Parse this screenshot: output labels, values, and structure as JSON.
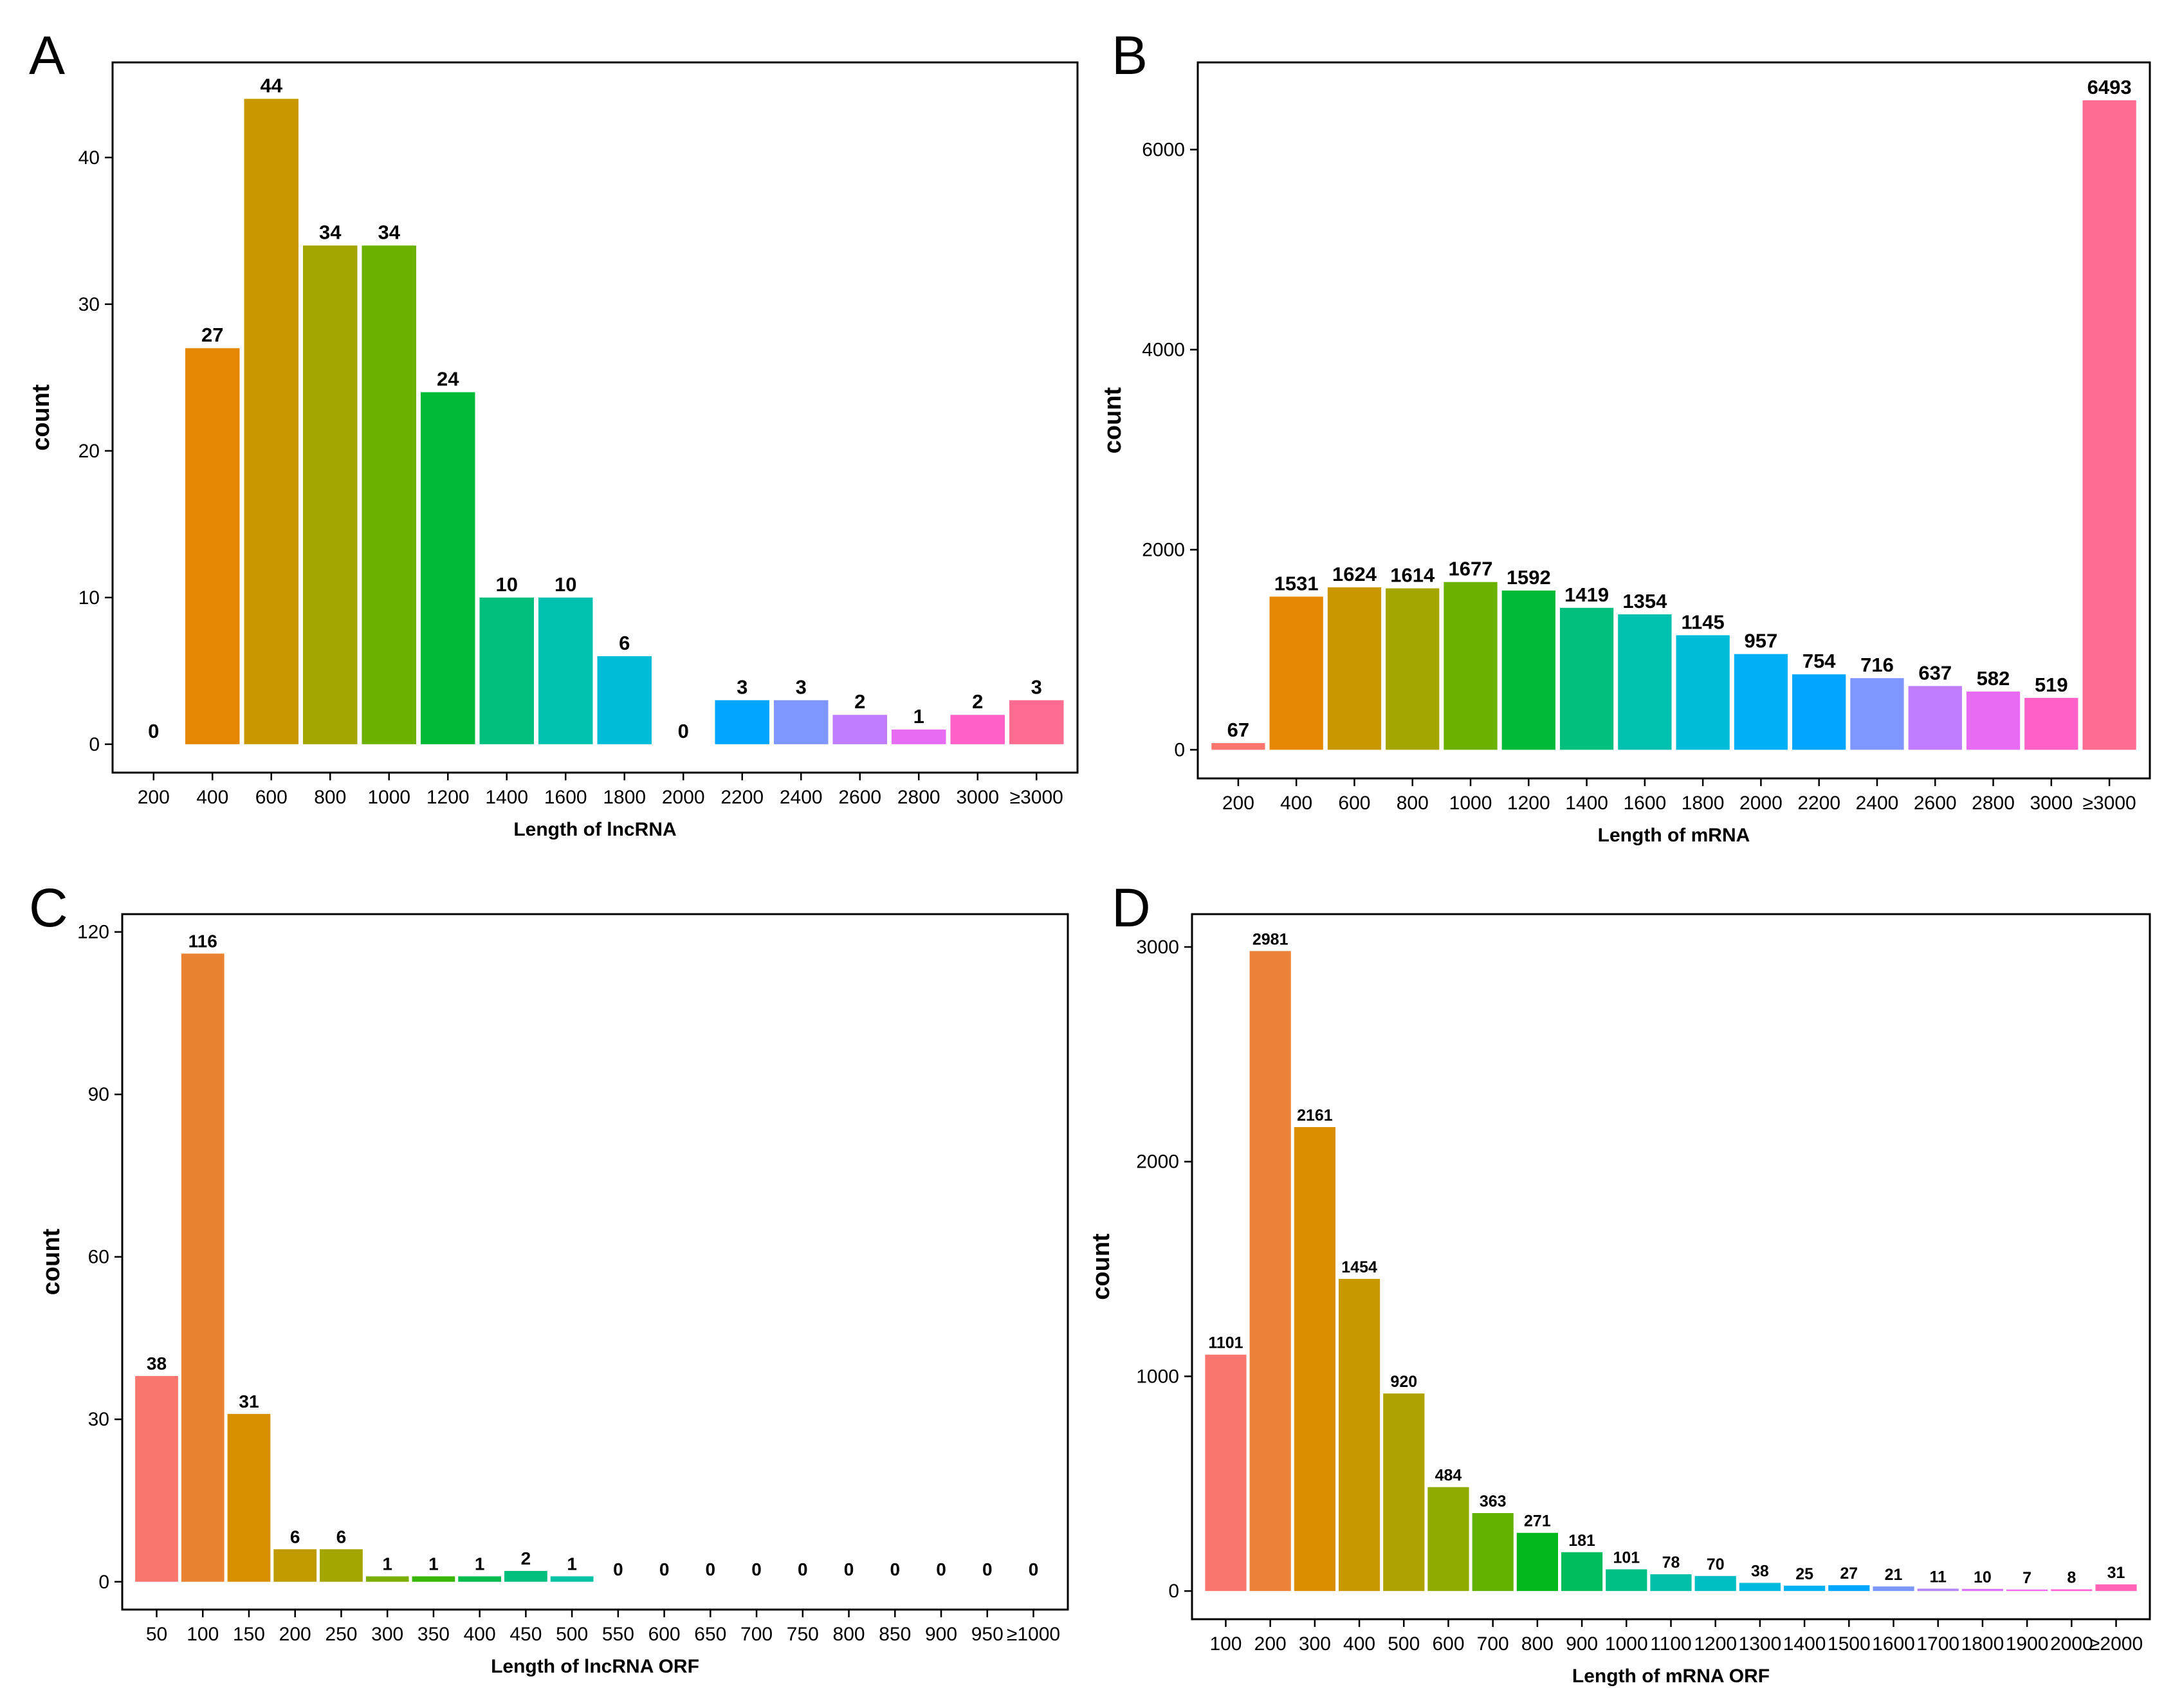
{
  "figure": {
    "panel_letters": [
      "A",
      "B",
      "C",
      "D"
    ]
  },
  "chart_data": [
    {
      "panel": "A",
      "type": "bar",
      "xlabel": "Length of lncRNA",
      "ylabel": "count",
      "ylim": [
        0,
        46
      ],
      "yticks": [
        0,
        10,
        20,
        30,
        40
      ],
      "categories": [
        "200",
        "400",
        "600",
        "800",
        "1000",
        "1200",
        "1400",
        "1600",
        "1800",
        "2000",
        "2200",
        "2400",
        "2600",
        "2800",
        "3000",
        "≥3000"
      ],
      "values": [
        0,
        27,
        44,
        34,
        34,
        24,
        10,
        10,
        6,
        0,
        3,
        3,
        2,
        1,
        2,
        3
      ],
      "colors": [
        "#F8766D",
        "#E58700",
        "#C99800",
        "#A3A500",
        "#6BB100",
        "#00BA38",
        "#00BF7D",
        "#00C0AF",
        "#00BCD8",
        "#00B0F6",
        "#00A5FF",
        "#7F96FF",
        "#BF7CFF",
        "#E76BF3",
        "#FF61C9",
        "#FF6C91"
      ],
      "grid": false
    },
    {
      "panel": "B",
      "type": "bar",
      "xlabel": "Length of mRNA",
      "ylabel": "count",
      "ylim": [
        0,
        6800
      ],
      "yticks": [
        0,
        2000,
        4000,
        6000
      ],
      "categories": [
        "200",
        "400",
        "600",
        "800",
        "1000",
        "1200",
        "1400",
        "1600",
        "1800",
        "2000",
        "2200",
        "2400",
        "2600",
        "2800",
        "3000",
        "≥3000"
      ],
      "values": [
        67,
        1531,
        1624,
        1614,
        1677,
        1592,
        1419,
        1354,
        1145,
        957,
        754,
        716,
        637,
        582,
        519,
        6493
      ],
      "colors": [
        "#F8766D",
        "#E58700",
        "#C99800",
        "#A3A500",
        "#6BB100",
        "#00BA38",
        "#00BF7D",
        "#00C0AF",
        "#00BCD8",
        "#00B0F6",
        "#00A5FF",
        "#7F96FF",
        "#BF7CFF",
        "#E76BF3",
        "#FF61C9",
        "#FF6C91"
      ],
      "grid": false
    },
    {
      "panel": "C",
      "type": "bar",
      "xlabel": "Length of lncRNA ORF",
      "ylabel": "count",
      "ylim": [
        0,
        122
      ],
      "yticks": [
        0,
        30,
        60,
        90,
        120
      ],
      "categories": [
        "50",
        "100",
        "150",
        "200",
        "250",
        "300",
        "350",
        "400",
        "450",
        "500",
        "550",
        "600",
        "650",
        "700",
        "750",
        "800",
        "850",
        "900",
        "950",
        "≥1000"
      ],
      "values": [
        38,
        116,
        31,
        6,
        6,
        1,
        1,
        1,
        2,
        1,
        0,
        0,
        0,
        0,
        0,
        0,
        0,
        0,
        0,
        0
      ],
      "colors": [
        "#F8766D",
        "#EA8331",
        "#D89000",
        "#C09B00",
        "#A3A500",
        "#7CAE00",
        "#39B600",
        "#00BB4E",
        "#00BF7D",
        "#00C1A3",
        "#00BFC4",
        "#00BAE0",
        "#00B0F6",
        "#35A2FF",
        "#9590FF",
        "#C77CFF",
        "#E76BF3",
        "#FA62DB",
        "#FF62BC",
        "#FF6C91"
      ],
      "grid": false
    },
    {
      "panel": "D",
      "type": "bar",
      "xlabel": "Length of mRNA ORF",
      "ylabel": "count",
      "ylim": [
        0,
        3120
      ],
      "yticks": [
        0,
        1000,
        2000,
        3000
      ],
      "categories": [
        "100",
        "200",
        "300",
        "400",
        "500",
        "600",
        "700",
        "800",
        "900",
        "1000",
        "1100",
        "1200",
        "1300",
        "1400",
        "1500",
        "1600",
        "1700",
        "1800",
        "1900",
        "2000",
        "≥2000"
      ],
      "values": [
        1101,
        2981,
        2161,
        1454,
        920,
        484,
        363,
        271,
        181,
        101,
        78,
        70,
        38,
        25,
        27,
        21,
        11,
        10,
        7,
        8,
        31
      ],
      "colors": [
        "#F8766D",
        "#EC8239",
        "#DB8E00",
        "#C79800",
        "#AEA200",
        "#8FAA00",
        "#64B200",
        "#00B81B",
        "#00BD5C",
        "#00C085",
        "#00C1A7",
        "#00BFC4",
        "#00BADE",
        "#00B2F3",
        "#00A6FF",
        "#7C96FF",
        "#B385FF",
        "#D874FD",
        "#EF67EB",
        "#FD61D3",
        "#FF63B6"
      ],
      "grid": false
    }
  ]
}
